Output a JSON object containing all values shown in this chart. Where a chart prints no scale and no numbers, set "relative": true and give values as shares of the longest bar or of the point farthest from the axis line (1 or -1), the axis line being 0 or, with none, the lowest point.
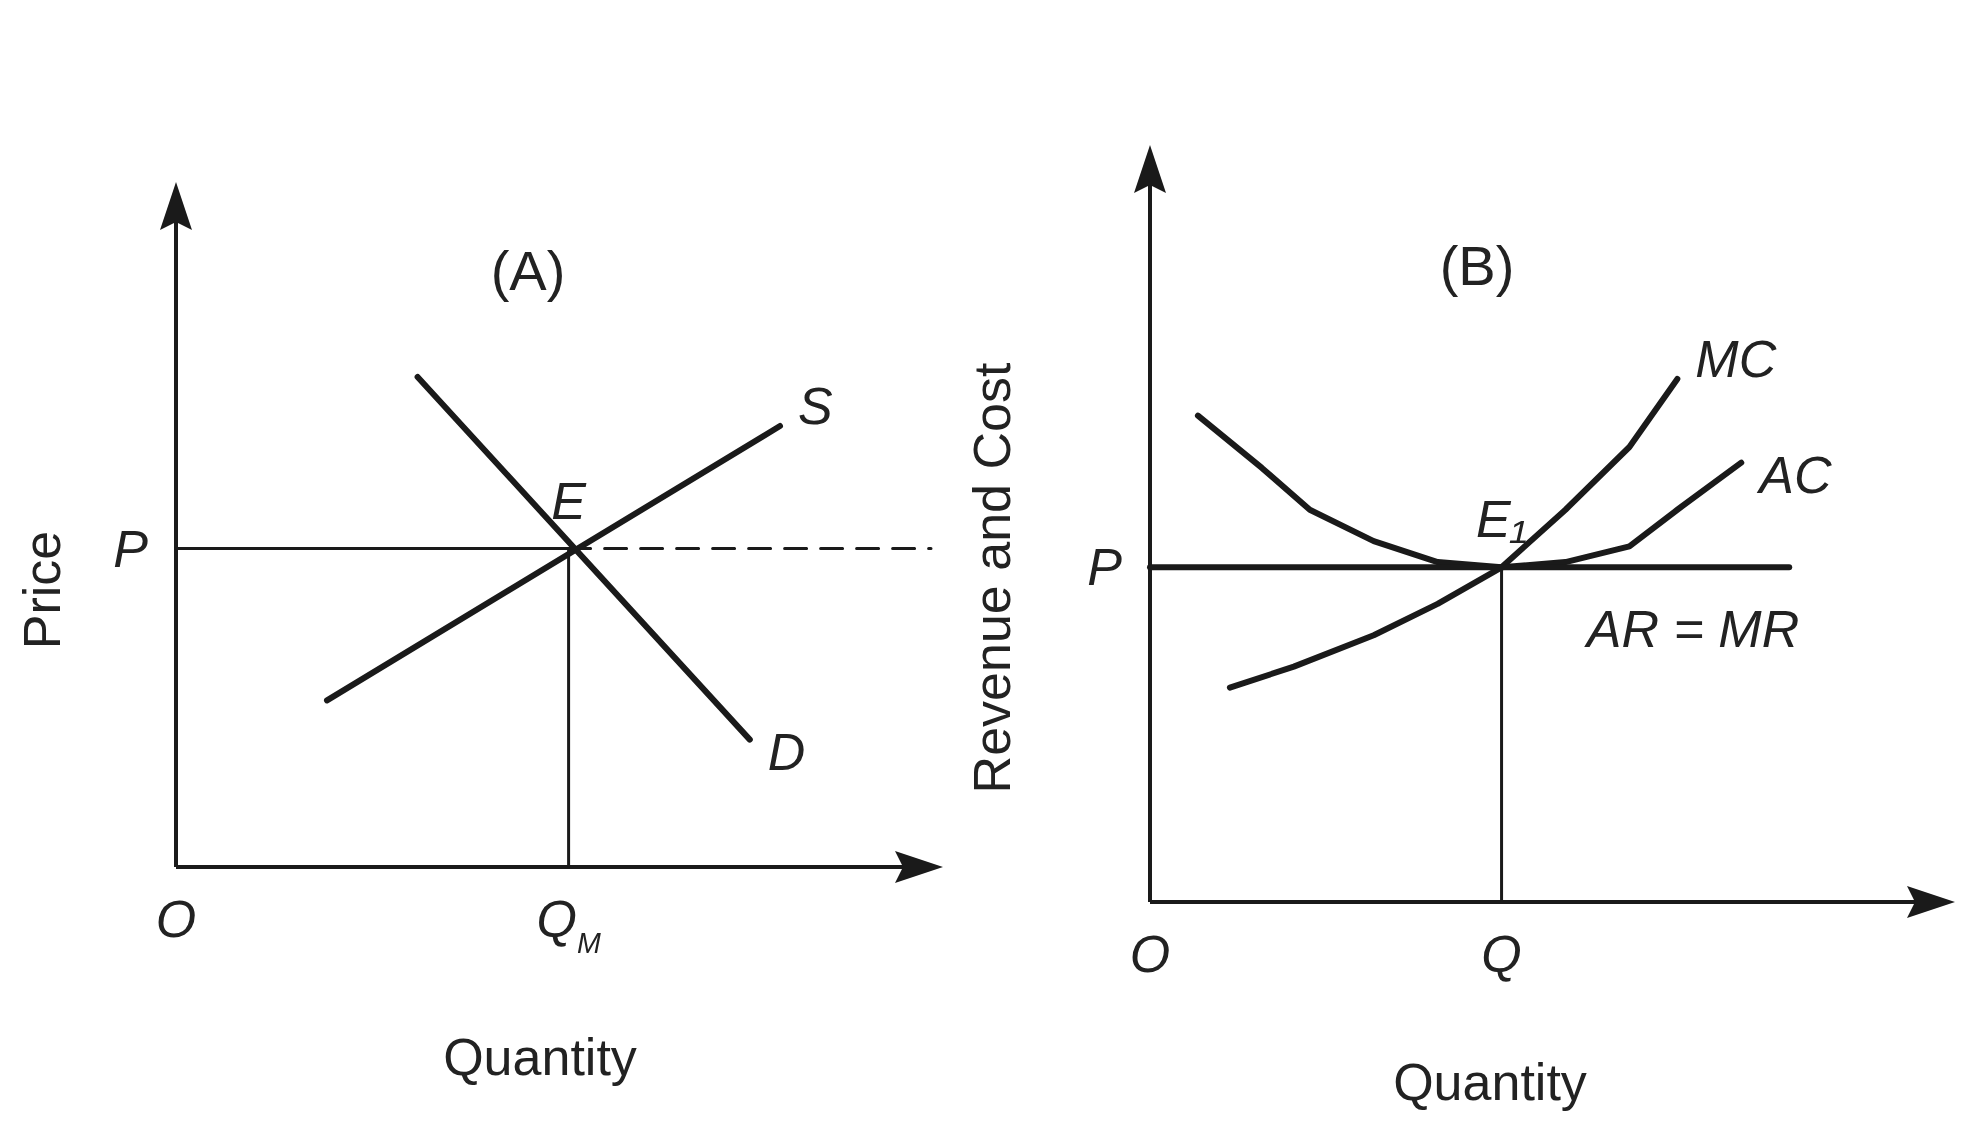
{
  "chart_data": [
    {
      "type": "line",
      "relative": true,
      "title": "(A)",
      "xlabel": "Quantity",
      "ylabel": "Price",
      "legend": false,
      "marker": "none",
      "categories": [
        "O",
        null,
        null,
        null,
        null,
        null,
        null,
        null,
        null,
        null,
        null,
        null,
        null,
        "Q$_{M}$",
        null,
        null,
        null,
        null,
        null,
        null,
        null,
        null,
        null,
        null,
        null,
        null
      ],
      "series": [
        {
          "name": "S",
          "color": "#1a1a1a",
          "values": [
            null,
            null,
            null,
            null,
            null,
            0.34,
            null,
            null,
            null,
            null,
            null,
            null,
            null,
            null,
            null,
            null,
            null,
            null,
            null,
            null,
            0.9,
            null,
            null,
            null,
            null,
            null
          ]
        },
        {
          "name": "D",
          "color": "#1a1a1a",
          "values": [
            null,
            null,
            null,
            null,
            null,
            null,
            null,
            null,
            1,
            null,
            null,
            null,
            null,
            null,
            null,
            null,
            null,
            null,
            null,
            0.26,
            null,
            null,
            null,
            null,
            null,
            null
          ]
        },
        {
          "color": "#1a1a1a",
          "values": [
            0.65,
            null,
            null,
            null,
            null,
            null,
            null,
            null,
            null,
            null,
            null,
            null,
            null,
            0.65,
            null,
            null,
            null,
            null,
            null,
            null,
            null,
            null,
            null,
            null,
            null,
            null
          ]
        },
        {
          "color": "#1a1a1a",
          "line_style": "dashed",
          "values": [
            null,
            null,
            null,
            null,
            null,
            null,
            null,
            null,
            null,
            null,
            null,
            null,
            null,
            0.65,
            null,
            null,
            null,
            null,
            null,
            null,
            null,
            null,
            null,
            null,
            null,
            0.65
          ]
        }
      ],
      "ref_lines": [
        {
          "axis": "x",
          "value": "Q$_{M}$",
          "color": "#1a1a1a"
        }
      ],
      "annotations": [
        {
          "text": "E",
          "x": "Q$_{M}$",
          "y": 0.65
        },
        {
          "text": "P",
          "x": "O",
          "y": 0.65
        }
      ]
    },
    {
      "type": "line",
      "relative": true,
      "title": "(B)",
      "xlabel": "Quantity",
      "ylabel": "Revenue and Cost",
      "legend": false,
      "marker": "none",
      "categories": [
        "O",
        null,
        null,
        null,
        null,
        null,
        null,
        null,
        null,
        null,
        null,
        null,
        null,
        null,
        null,
        null,
        null,
        null,
        null,
        null,
        null,
        null,
        "Q",
        null,
        null,
        null,
        null,
        null,
        null,
        null,
        null,
        null,
        null,
        null,
        null,
        null,
        null,
        null,
        null,
        null,
        null,
        null,
        null,
        null,
        null,
        null,
        null,
        null,
        null,
        null,
        null
      ],
      "series": [
        {
          "name": "MC",
          "color": "#1a1a1a",
          "values": [
            null,
            null,
            null,
            null,
            null,
            0.41,
            null,
            null,
            null,
            0.45,
            null,
            null,
            null,
            null,
            0.51,
            null,
            null,
            null,
            0.57,
            null,
            null,
            null,
            0.64,
            null,
            null,
            null,
            0.75,
            null,
            null,
            null,
            0.87,
            null,
            null,
            1,
            null,
            null,
            null,
            null,
            null,
            null,
            null,
            null,
            null,
            null,
            null,
            null,
            null,
            null,
            null,
            null,
            null
          ]
        },
        {
          "name": "AC",
          "color": "#1a1a1a",
          "values": [
            null,
            null,
            null,
            0.93,
            null,
            null,
            null,
            0.83,
            null,
            null,
            0.75,
            null,
            null,
            null,
            0.69,
            null,
            null,
            null,
            0.65,
            null,
            null,
            null,
            0.64,
            null,
            null,
            null,
            0.65,
            null,
            null,
            null,
            0.68,
            null,
            null,
            0.75,
            null,
            null,
            null,
            0.84,
            null,
            null,
            null,
            null,
            null,
            null,
            null,
            null,
            null,
            null,
            null,
            null,
            null
          ]
        },
        {
          "name": "AR = MR",
          "color": "#1a1a1a",
          "values": [
            0.64,
            null,
            null,
            null,
            null,
            null,
            null,
            null,
            null,
            null,
            null,
            null,
            null,
            null,
            null,
            null,
            null,
            null,
            null,
            null,
            null,
            null,
            null,
            null,
            null,
            null,
            null,
            null,
            null,
            null,
            null,
            null,
            null,
            null,
            null,
            null,
            null,
            null,
            null,
            null,
            0.64,
            null,
            null,
            null,
            null,
            null,
            null,
            null,
            null,
            null,
            null
          ]
        }
      ],
      "ref_lines": [
        {
          "axis": "x",
          "value": "Q",
          "color": "#1a1a1a"
        }
      ],
      "annotations": [
        {
          "text": "E₁",
          "x": "Q",
          "y": 0.64
        },
        {
          "text": "P",
          "x": "O",
          "y": 0.64
        }
      ]
    }
  ]
}
